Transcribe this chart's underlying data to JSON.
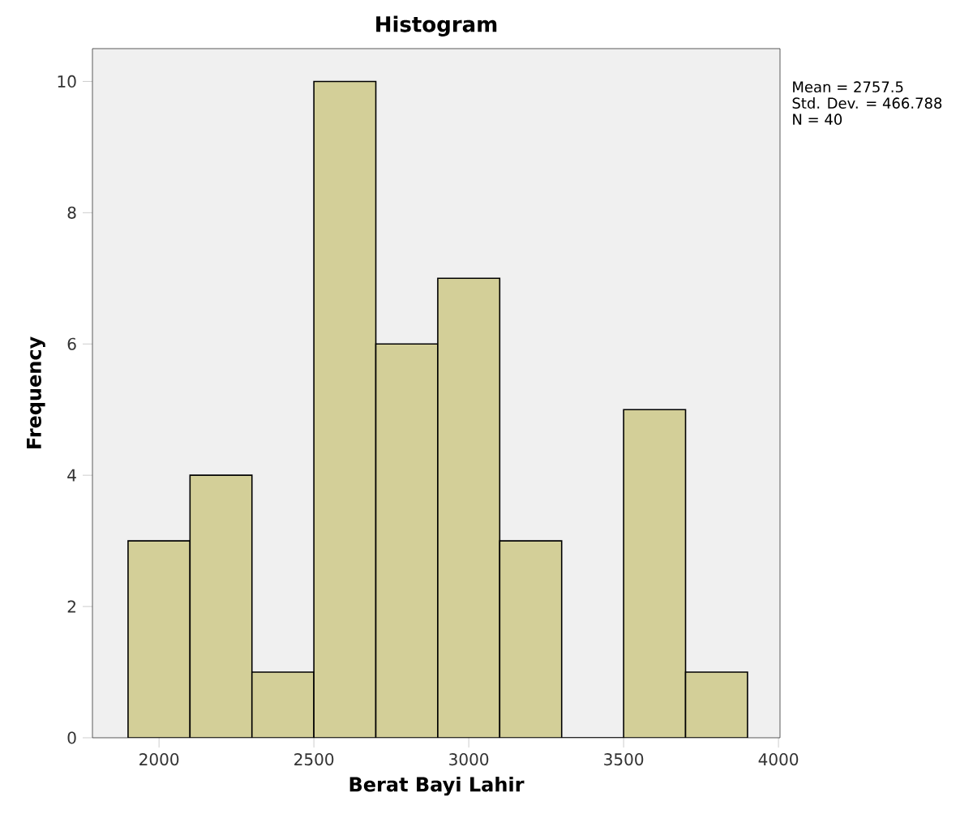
{
  "chart_data": {
    "type": "histogram",
    "title": "Histogram",
    "xlabel": "Berat Bayi Lahir",
    "ylabel": "Frequency",
    "bins": [
      1900,
      2100,
      2300,
      2500,
      2700,
      2900,
      3100,
      3300,
      3500,
      3700,
      3900
    ],
    "values": [
      3,
      4,
      1,
      10,
      6,
      7,
      3,
      0,
      5,
      1
    ],
    "color": "#d3cf98",
    "xlim": [
      1785,
      4005
    ],
    "xticks": [
      2000,
      2500,
      3000,
      3500,
      4000
    ],
    "ylim": [
      0,
      10.5
    ],
    "yticks": [
      0,
      2,
      4,
      6,
      8,
      10
    ],
    "grid": false,
    "annotations": [
      "Mean = 2757.5",
      "Std. Dev. = 466.788",
      "N = 40"
    ]
  }
}
